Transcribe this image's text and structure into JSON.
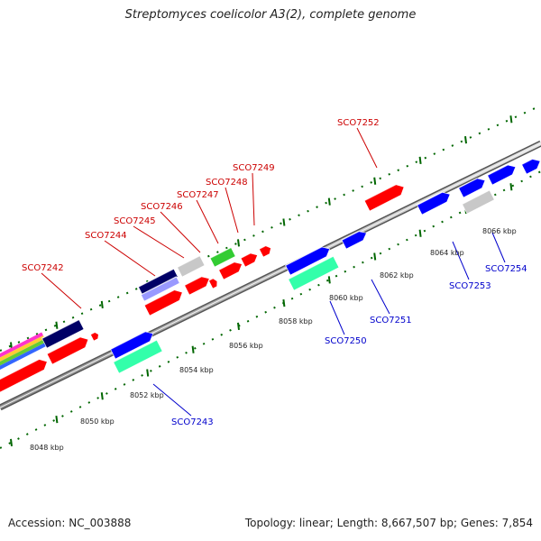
{
  "title": "Streptomyces coelicolor A3(2), complete genome",
  "footer": {
    "accession": "Accession: NC_003888",
    "summary": "Topology: linear; Length: 8,667,507 bp; Genes: 7,854"
  },
  "colors": {
    "forward_label": "#cc0000",
    "reverse_label": "#0000cc",
    "red": "#ff0000",
    "blue": "#0000ff",
    "navy": "#000066",
    "green": "#33cc33",
    "teal": "#33ffaa",
    "gray": "#c8c8c8",
    "tick_green": "#006600"
  },
  "scale_labels": [
    "8048 kbp",
    "8050 kbp",
    "8052 kbp",
    "8054 kbp",
    "8056 kbp",
    "8058 kbp",
    "8060 kbp",
    "8062 kbp",
    "8064 kbp",
    "8066 kbp"
  ],
  "forward_labels": [
    "SCO7242",
    "SCO7244",
    "SCO7245",
    "SCO7246",
    "SCO7247",
    "SCO7248",
    "SCO7249",
    "SCO7252"
  ],
  "reverse_labels": [
    "SCO7243",
    "SCO7250",
    "SCO7251",
    "SCO7253",
    "SCO7254"
  ]
}
